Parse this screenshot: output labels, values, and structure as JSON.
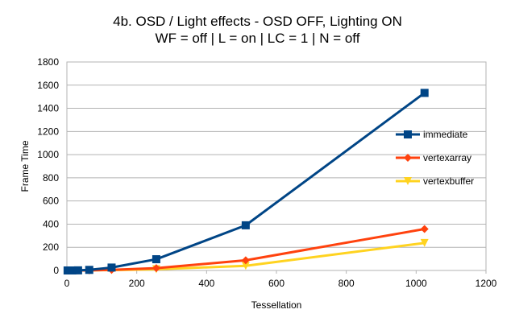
{
  "chart_data": {
    "type": "line",
    "title": "4b. OSD / Light effects - OSD OFF, Lighting ON",
    "subtitle": "WF = off | L = on | LC = 1 | N = off",
    "xlabel": "Tessellation",
    "ylabel": "Frame Time",
    "xlim": [
      0,
      1200
    ],
    "ylim": [
      0,
      1800
    ],
    "xticks": [
      0,
      200,
      400,
      600,
      800,
      1000,
      1200
    ],
    "yticks": [
      0,
      200,
      400,
      600,
      800,
      1000,
      1200,
      1400,
      1600,
      1800
    ],
    "grid": "horizontal",
    "legend_position": "right",
    "series": [
      {
        "name": "immediate",
        "color": "#004586",
        "marker": "square",
        "x": [
          2,
          4,
          8,
          16,
          32,
          64,
          128,
          256,
          512,
          1024
        ],
        "y": [
          0,
          0,
          0,
          0,
          1,
          5,
          25,
          97,
          390,
          1533
        ]
      },
      {
        "name": "vertexarray",
        "color": "#ff420e",
        "marker": "diamond",
        "x": [
          2,
          4,
          8,
          16,
          32,
          64,
          128,
          256,
          512,
          1024
        ],
        "y": [
          0,
          0,
          0,
          0,
          0,
          1,
          5,
          20,
          88,
          358
        ]
      },
      {
        "name": "vertexbuffer",
        "color": "#ffd320",
        "marker": "triangle-down",
        "x": [
          2,
          4,
          8,
          16,
          32,
          64,
          128,
          256,
          512,
          1024
        ],
        "y": [
          0,
          0,
          0,
          0,
          0,
          1,
          3,
          10,
          40,
          237
        ]
      }
    ]
  }
}
